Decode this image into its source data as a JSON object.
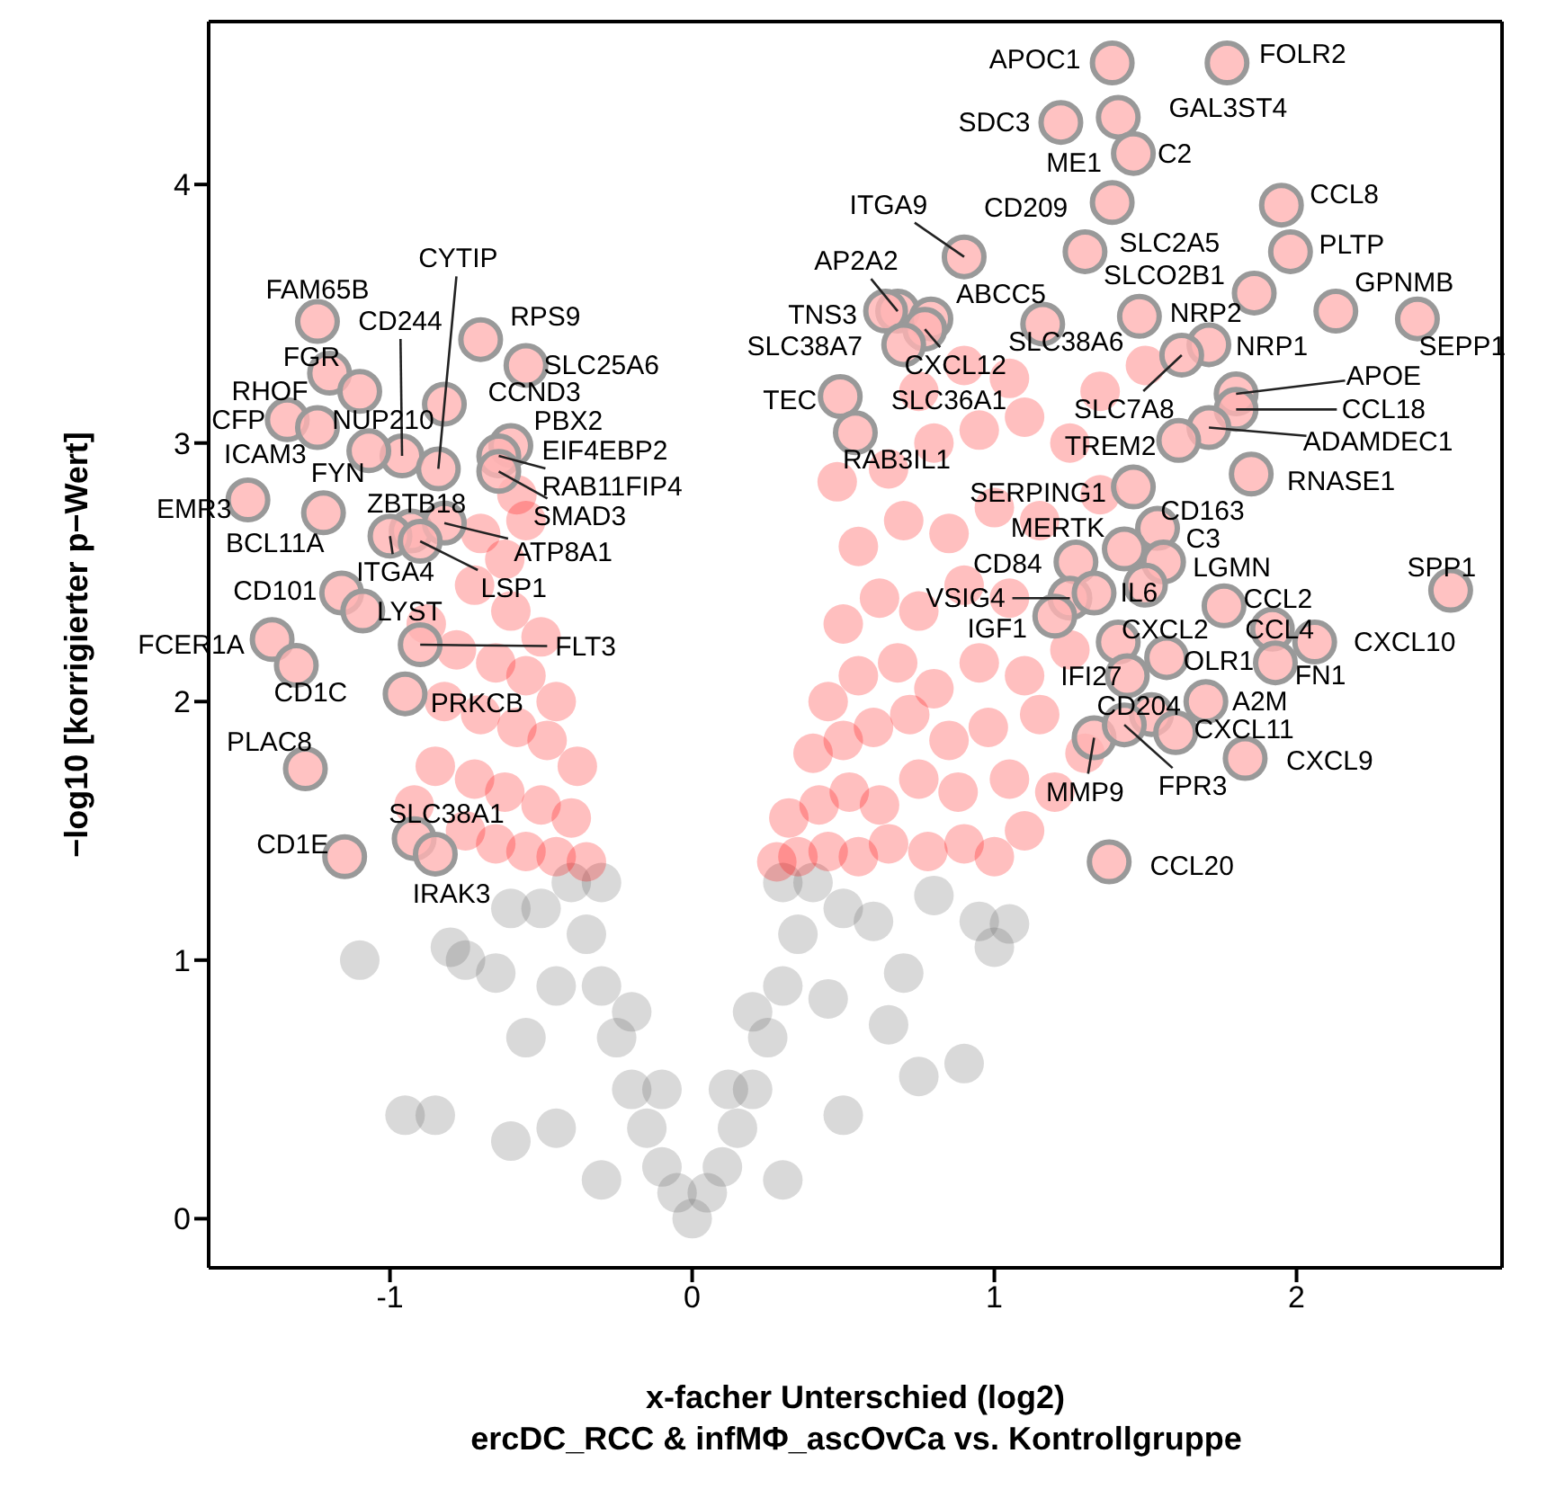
{
  "chart_data": {
    "type": "scatter",
    "xlabel": "x-facher Unterschied (log2)",
    "ylabel": "−log10 [korrigierter p−Wert]",
    "xlim": [
      -1.6,
      2.68
    ],
    "ylim": [
      -0.19,
      4.63
    ],
    "xticks": [
      -1,
      0,
      1,
      2
    ],
    "yticks": [
      0,
      1,
      2,
      3,
      4
    ],
    "legend": false,
    "marker": "circle",
    "series": [
      {
        "color": "#666666",
        "x": [
          0,
          -0.05,
          0.05,
          -0.1,
          0.1,
          -0.15,
          0.15,
          -0.2,
          0.2,
          -0.25,
          0.25,
          -0.3,
          0.3,
          -0.35,
          0.35,
          -0.4,
          0.4,
          -0.3,
          0.3,
          -0.2,
          0.2,
          -0.1,
          0.12,
          -0.5,
          0.5,
          -0.45,
          0.45,
          -0.6,
          0.6,
          -0.75,
          0.8,
          -0.8,
          0.95,
          -0.65,
          0.7,
          -0.55,
          0.65,
          -0.95,
          0.75,
          -0.85,
          0.5,
          -0.45,
          0.9,
          0.3,
          -0.3,
          -0.6,
          1.0,
          -1.1,
          1.05
        ],
        "values": [
          0,
          0.1,
          0.1,
          0.2,
          0.2,
          0.35,
          0.35,
          0.5,
          0.5,
          0.7,
          0.7,
          0.9,
          0.9,
          1.1,
          1.1,
          1.3,
          1.3,
          1.3,
          1.3,
          0.8,
          0.8,
          0.5,
          0.5,
          1.2,
          1.2,
          0.9,
          0.85,
          1.2,
          1.15,
          1.0,
          1.25,
          1.05,
          1.15,
          0.95,
          0.95,
          0.7,
          0.75,
          0.4,
          0.55,
          0.4,
          0.4,
          0.35,
          0.6,
          0.15,
          0.15,
          0.3,
          1.05,
          1.0,
          1.14
        ]
      },
      {
        "color": "#ff0000",
        "x": [
          -0.35,
          -0.45,
          -0.55,
          -0.65,
          -0.75,
          -0.4,
          -0.5,
          -0.62,
          -0.72,
          -0.85,
          -0.38,
          -0.48,
          -0.58,
          -0.7,
          -0.82,
          -0.45,
          -0.55,
          -0.65,
          -0.78,
          -0.5,
          -0.6,
          -0.72,
          -0.62,
          -0.7,
          -0.55,
          -0.58,
          -0.88,
          -0.92,
          0.28,
          0.35,
          0.45,
          0.55,
          0.65,
          0.78,
          0.9,
          1.0,
          1.1,
          0.32,
          0.42,
          0.52,
          0.62,
          0.75,
          0.88,
          1.05,
          1.2,
          0.4,
          0.5,
          0.6,
          0.72,
          0.85,
          0.98,
          1.15,
          1.3,
          0.45,
          0.55,
          0.68,
          0.8,
          0.95,
          1.1,
          1.25,
          0.5,
          0.62,
          0.75,
          0.9,
          1.05,
          0.55,
          0.7,
          0.85,
          1.0,
          1.15,
          0.48,
          0.65,
          0.8,
          0.95,
          1.1,
          1.25,
          0.75,
          0.9,
          1.05,
          1.35,
          1.5,
          1.35
        ],
        "values": [
          1.38,
          1.4,
          1.42,
          1.45,
          1.5,
          1.55,
          1.6,
          1.65,
          1.7,
          1.75,
          1.75,
          1.85,
          1.9,
          1.95,
          2.0,
          2.0,
          2.1,
          2.15,
          2.2,
          2.25,
          2.35,
          2.45,
          2.55,
          2.65,
          2.7,
          2.8,
          2.3,
          1.6,
          1.38,
          1.4,
          1.42,
          1.4,
          1.45,
          1.42,
          1.45,
          1.4,
          1.5,
          1.55,
          1.6,
          1.65,
          1.6,
          1.7,
          1.65,
          1.7,
          1.65,
          1.8,
          1.85,
          1.9,
          1.95,
          1.85,
          1.9,
          1.95,
          1.8,
          2.0,
          2.1,
          2.15,
          2.05,
          2.15,
          2.1,
          2.2,
          2.3,
          2.4,
          2.35,
          2.45,
          2.4,
          2.6,
          2.7,
          2.65,
          2.75,
          2.7,
          2.85,
          2.9,
          3.0,
          3.05,
          3.1,
          3.0,
          3.2,
          3.3,
          3.25,
          3.2,
          3.3,
          2.8
        ]
      },
      {
        "color": "#ffb3b3",
        "x": [
          -1.24,
          -0.96,
          -0.84,
          -0.7,
          -0.55,
          -0.82,
          -0.6,
          -1.2,
          -1.1,
          -1.34,
          -1.07,
          -1.24,
          -1.22,
          -1.47,
          -0.93,
          -1.0,
          -0.82,
          -0.64,
          -0.64,
          -0.9,
          -1.16,
          -1.09,
          -1.39,
          -0.9,
          -1.31,
          -0.95,
          -1.28,
          -0.92,
          -1.15,
          -0.85,
          1.39,
          1.77,
          1.22,
          1.41,
          1.46,
          1.39,
          1.95,
          0.9,
          1.3,
          1.98,
          0.68,
          0.64,
          0.79,
          0.77,
          0.7,
          1.86,
          2.13,
          2.4,
          1.48,
          1.71,
          1.62,
          1.16,
          1.8,
          1.8,
          1.71,
          0.49,
          0.54,
          1.61,
          1.85,
          1.46,
          1.54,
          1.43,
          1.56,
          1.5,
          1.76,
          2.51,
          1.27,
          1.25,
          1.33,
          1.2,
          1.41,
          1.92,
          2.06,
          1.57,
          1.93,
          1.44,
          1.52,
          1.7,
          1.6,
          1.33,
          1.43,
          1.83,
          1.38
        ],
        "values": [
          3.47,
          2.95,
          2.9,
          3.4,
          3.3,
          3.15,
          2.99,
          3.27,
          3.2,
          3.09,
          2.97,
          3.06,
          2.73,
          2.78,
          2.66,
          2.64,
          2.69,
          2.95,
          2.89,
          2.62,
          2.42,
          2.35,
          2.24,
          2.22,
          2.14,
          2.03,
          1.74,
          1.47,
          1.4,
          1.41,
          4.47,
          4.47,
          4.24,
          4.26,
          4.12,
          3.93,
          3.92,
          3.72,
          3.74,
          3.74,
          3.51,
          3.51,
          3.48,
          3.44,
          3.38,
          3.58,
          3.51,
          3.48,
          3.49,
          3.38,
          3.34,
          3.46,
          3.19,
          3.13,
          3.06,
          3.18,
          3.04,
          3.01,
          2.88,
          2.83,
          2.67,
          2.59,
          2.54,
          2.45,
          2.37,
          2.43,
          2.54,
          2.4,
          2.42,
          2.33,
          2.23,
          2.28,
          2.23,
          2.17,
          2.15,
          2.1,
          1.95,
          2.0,
          1.88,
          1.86,
          1.91,
          1.78,
          1.38
        ]
      }
    ],
    "annotations": [
      {
        "text": "FAM65B",
        "x": -1.24,
        "y": 3.47
      },
      {
        "text": "CD244",
        "x": -0.96,
        "y": 2.95
      },
      {
        "text": "CYTIP",
        "x": -0.84,
        "y": 2.9
      },
      {
        "text": "RPS9",
        "x": -0.7,
        "y": 3.4
      },
      {
        "text": "SLC25A6",
        "x": -0.55,
        "y": 3.3
      },
      {
        "text": "CCND3",
        "x": -0.82,
        "y": 3.15
      },
      {
        "text": "PBX2",
        "x": -0.6,
        "y": 2.99
      },
      {
        "text": "FGR",
        "x": -1.2,
        "y": 3.27
      },
      {
        "text": "RHOF",
        "x": -1.1,
        "y": 3.2
      },
      {
        "text": "CFP",
        "x": -1.34,
        "y": 3.09
      },
      {
        "text": "NUP210",
        "x": -1.07,
        "y": 2.97
      },
      {
        "text": "ICAM3",
        "x": -1.24,
        "y": 3.06
      },
      {
        "text": "FYN",
        "x": -1.22,
        "y": 2.73
      },
      {
        "text": "EMR3",
        "x": -1.47,
        "y": 2.78
      },
      {
        "text": "ZBTB18",
        "x": -0.93,
        "y": 2.66
      },
      {
        "text": "ITGA4",
        "x": -1.0,
        "y": 2.64
      },
      {
        "text": "ATP8A1",
        "x": -0.82,
        "y": 2.69
      },
      {
        "text": "EIF4EBP2",
        "x": -0.64,
        "y": 2.95
      },
      {
        "text": "RAB11FIP4",
        "x": -0.64,
        "y": 2.95
      },
      {
        "text": "SMAD3",
        "x": -0.64,
        "y": 2.89
      },
      {
        "text": "LSP1",
        "x": -0.9,
        "y": 2.62
      },
      {
        "text": "BCL11A",
        "x": -1.22,
        "y": 2.73
      },
      {
        "text": "CD101",
        "x": -1.16,
        "y": 2.42
      },
      {
        "text": "LYST",
        "x": -1.09,
        "y": 2.35
      },
      {
        "text": "FCER1A",
        "x": -1.39,
        "y": 2.24
      },
      {
        "text": "FLT3",
        "x": -0.9,
        "y": 2.22
      },
      {
        "text": "CD1C",
        "x": -1.31,
        "y": 2.14
      },
      {
        "text": "PRKCB",
        "x": -0.95,
        "y": 2.03
      },
      {
        "text": "PLAC8",
        "x": -1.28,
        "y": 1.74
      },
      {
        "text": "SLC38A1",
        "x": -0.92,
        "y": 1.47
      },
      {
        "text": "CD1E",
        "x": -1.15,
        "y": 1.4
      },
      {
        "text": "IRAK3",
        "x": -0.85,
        "y": 1.41
      },
      {
        "text": "APOC1",
        "x": 1.39,
        "y": 4.47
      },
      {
        "text": "FOLR2",
        "x": 1.77,
        "y": 4.47
      },
      {
        "text": "SDC3",
        "x": 1.22,
        "y": 4.24
      },
      {
        "text": "GAL3ST4",
        "x": 1.41,
        "y": 4.26
      },
      {
        "text": "ME1",
        "x": 1.46,
        "y": 4.12
      },
      {
        "text": "C2",
        "x": 1.46,
        "y": 4.12
      },
      {
        "text": "CD209",
        "x": 1.39,
        "y": 3.93
      },
      {
        "text": "CCL8",
        "x": 1.95,
        "y": 3.92
      },
      {
        "text": "ITGA9",
        "x": 0.9,
        "y": 3.72
      },
      {
        "text": "SLC2A5",
        "x": 1.3,
        "y": 3.74
      },
      {
        "text": "PLTP",
        "x": 1.98,
        "y": 3.74
      },
      {
        "text": "AP2A2",
        "x": 0.68,
        "y": 3.51
      },
      {
        "text": "TNS3",
        "x": 0.64,
        "y": 3.51
      },
      {
        "text": "ABCC5",
        "x": 0.79,
        "y": 3.48
      },
      {
        "text": "CXCL12",
        "x": 0.77,
        "y": 3.44
      },
      {
        "text": "SLC38A7",
        "x": 0.7,
        "y": 3.38
      },
      {
        "text": "SLCO2B1",
        "x": 1.86,
        "y": 3.58
      },
      {
        "text": "GPNMB",
        "x": 2.13,
        "y": 3.51
      },
      {
        "text": "SEPP1",
        "x": 2.4,
        "y": 3.48
      },
      {
        "text": "NRP2",
        "x": 1.48,
        "y": 3.49
      },
      {
        "text": "NRP1",
        "x": 1.71,
        "y": 3.38
      },
      {
        "text": "SLC7A8",
        "x": 1.62,
        "y": 3.34
      },
      {
        "text": "SLC38A6",
        "x": 1.16,
        "y": 3.46
      },
      {
        "text": "APOE",
        "x": 1.8,
        "y": 3.19
      },
      {
        "text": "CCL18",
        "x": 1.8,
        "y": 3.13
      },
      {
        "text": "ADAMDEC1",
        "x": 1.71,
        "y": 3.06
      },
      {
        "text": "TEC",
        "x": 0.49,
        "y": 3.18
      },
      {
        "text": "SLC36A1",
        "x": 0.54,
        "y": 3.04
      },
      {
        "text": "RAB3IL1",
        "x": 0.54,
        "y": 3.04
      },
      {
        "text": "TREM2",
        "x": 1.61,
        "y": 3.01
      },
      {
        "text": "RNASE1",
        "x": 1.85,
        "y": 2.88
      },
      {
        "text": "SERPING1",
        "x": 1.46,
        "y": 2.83
      },
      {
        "text": "CD163",
        "x": 1.54,
        "y": 2.67
      },
      {
        "text": "MERTK",
        "x": 1.43,
        "y": 2.59
      },
      {
        "text": "C3",
        "x": 1.56,
        "y": 2.54
      },
      {
        "text": "LGMN",
        "x": 1.5,
        "y": 2.45
      },
      {
        "text": "CCL2",
        "x": 1.76,
        "y": 2.37
      },
      {
        "text": "SPP1",
        "x": 2.51,
        "y": 2.43
      },
      {
        "text": "CD84",
        "x": 1.27,
        "y": 2.54
      },
      {
        "text": "VSIG4",
        "x": 1.25,
        "y": 2.4
      },
      {
        "text": "IL6",
        "x": 1.33,
        "y": 2.42
      },
      {
        "text": "IGF1",
        "x": 1.2,
        "y": 2.33
      },
      {
        "text": "CXCL2",
        "x": 1.41,
        "y": 2.23
      },
      {
        "text": "CCL4",
        "x": 1.92,
        "y": 2.28
      },
      {
        "text": "CXCL10",
        "x": 2.06,
        "y": 2.23
      },
      {
        "text": "OLR1",
        "x": 1.57,
        "y": 2.17
      },
      {
        "text": "FN1",
        "x": 1.93,
        "y": 2.15
      },
      {
        "text": "IFI27",
        "x": 1.44,
        "y": 2.1
      },
      {
        "text": "CD204",
        "x": 1.52,
        "y": 1.95
      },
      {
        "text": "A2M",
        "x": 1.7,
        "y": 2.0
      },
      {
        "text": "CXCL11",
        "x": 1.6,
        "y": 1.88
      },
      {
        "text": "MMP9",
        "x": 1.33,
        "y": 1.86
      },
      {
        "text": "FPR3",
        "x": 1.43,
        "y": 1.91
      },
      {
        "text": "CXCL9",
        "x": 1.83,
        "y": 1.78
      },
      {
        "text": "CCL20",
        "x": 1.38,
        "y": 1.38
      },
      "ercDC_RCC & infMΦ_ascOvCa vs. Kontrollgruppe"
    ]
  }
}
